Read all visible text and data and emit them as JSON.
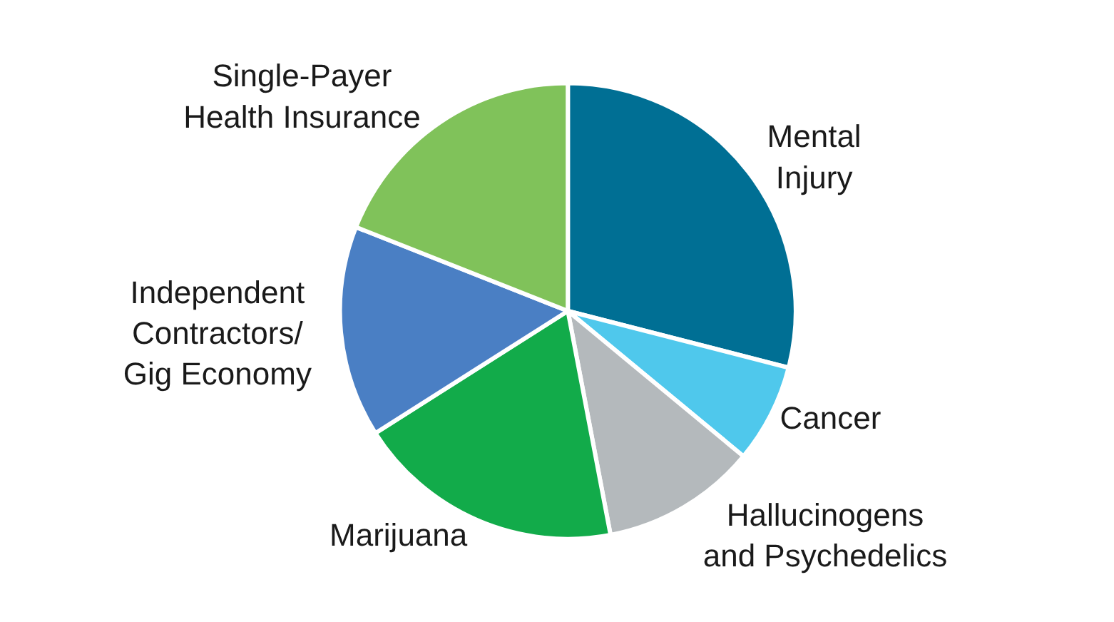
{
  "chart_data": {
    "type": "pie",
    "categories": [
      "Mental\nInjury",
      "Cancer",
      "Hallucinogens\nand Psychedelics",
      "Marijuana",
      "Independent\nContractors/\nGig Economy",
      "Single-Payer\nHealth Insurance"
    ],
    "values": [
      29,
      7,
      11,
      19,
      15,
      19
    ],
    "colors": [
      "#006f94",
      "#4fc8ec",
      "#b4b9bc",
      "#12ab4a",
      "#4a7fc4",
      "#80c25a"
    ],
    "legend": false
  }
}
